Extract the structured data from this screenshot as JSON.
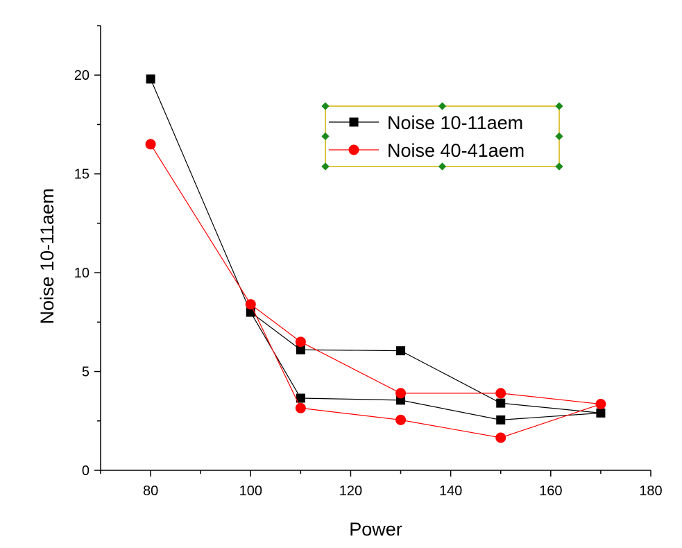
{
  "chart_data": {
    "type": "line",
    "xlabel": "Power",
    "ylabel": "Noise 10-11aem",
    "xlim": [
      70,
      180
    ],
    "ylim": [
      0,
      22.5
    ],
    "xticks": [
      80,
      100,
      120,
      140,
      160,
      180
    ],
    "yticks": [
      0,
      5,
      10,
      15,
      20
    ],
    "grid": false,
    "legend": {
      "position": "top-center",
      "selected": true
    },
    "series": [
      {
        "name": "Noise 10-11aem",
        "color": "#000000",
        "marker": "square",
        "points": [
          [
            80,
            19.8
          ],
          [
            100,
            8.0
          ],
          [
            110,
            6.1
          ],
          [
            130,
            6.05
          ],
          [
            150,
            3.4
          ],
          [
            170,
            2.9
          ],
          [
            150,
            2.55
          ],
          [
            130,
            3.55
          ],
          [
            110,
            3.65
          ],
          [
            100,
            8.0
          ],
          [
            80,
            19.8
          ]
        ]
      },
      {
        "name": "Noise 40-41aem",
        "color": "#ff0000",
        "marker": "circle",
        "points": [
          [
            80,
            16.5
          ],
          [
            100,
            8.4
          ],
          [
            110,
            6.5
          ],
          [
            130,
            3.9
          ],
          [
            150,
            3.9
          ],
          [
            170,
            3.35
          ],
          [
            150,
            1.65
          ],
          [
            130,
            2.55
          ],
          [
            110,
            3.15
          ],
          [
            100,
            8.4
          ],
          [
            80,
            16.5
          ]
        ]
      }
    ]
  }
}
